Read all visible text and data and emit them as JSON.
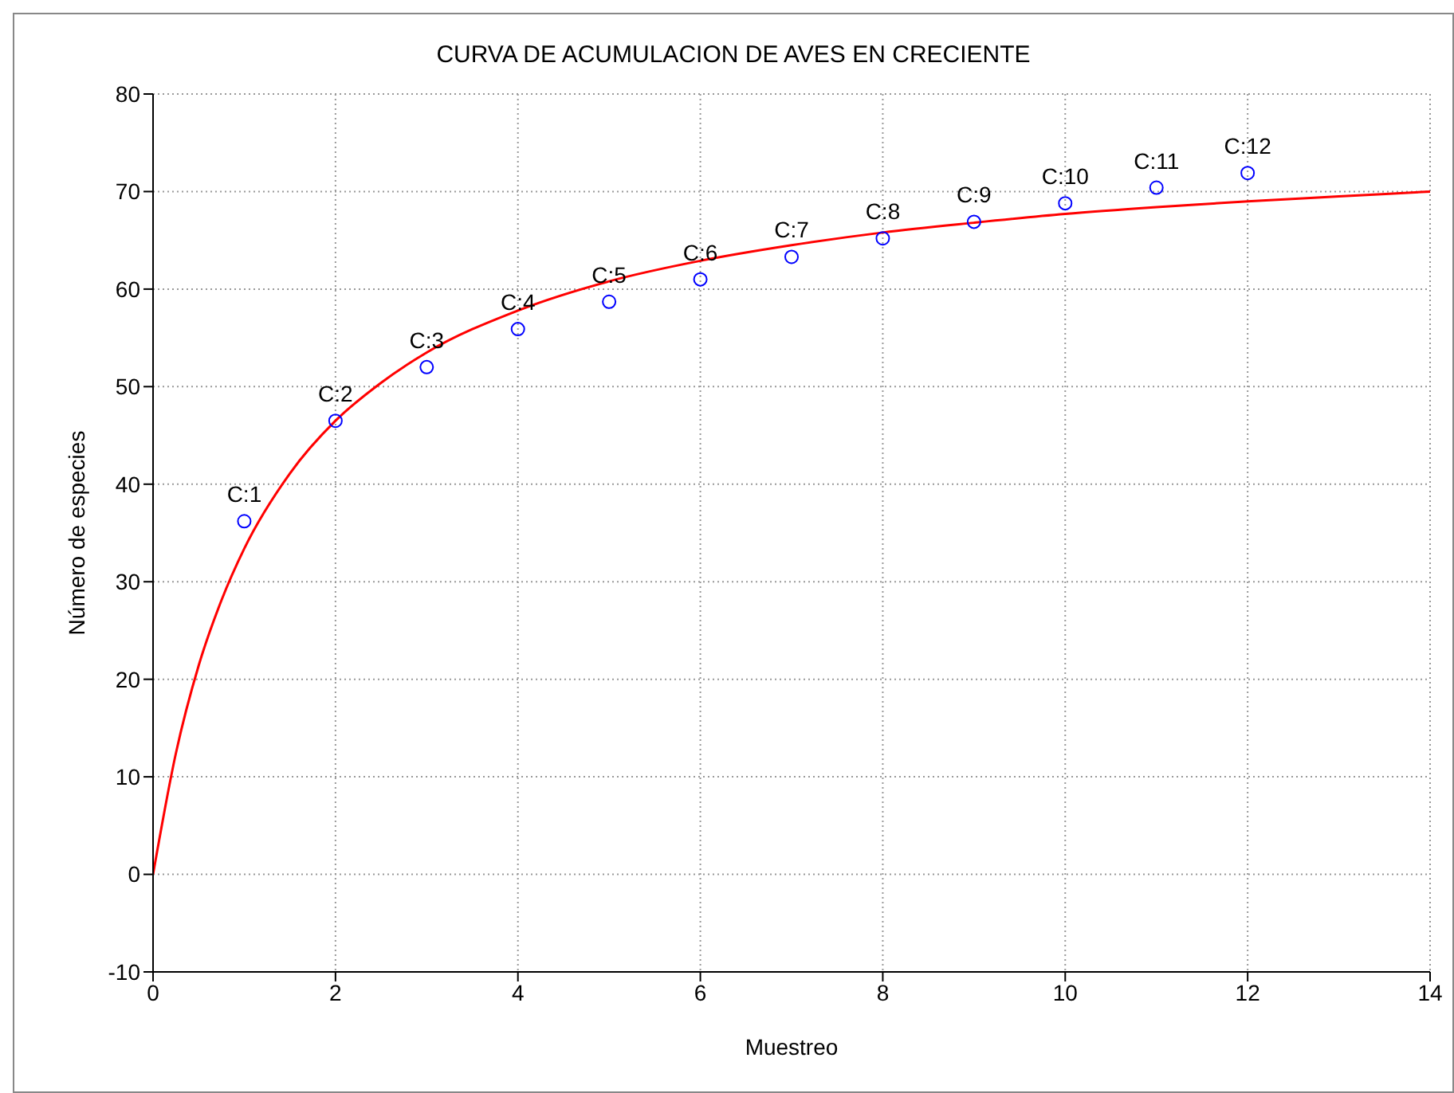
{
  "chart_data": {
    "type": "scatter",
    "title": "CURVA DE ACUMULACION DE AVES EN CRECIENTE",
    "xlabel": "Muestreo",
    "ylabel": "Número de especies",
    "series": [
      {
        "color": "#0000ff",
        "marker": "circle",
        "x": [
          1,
          2,
          3,
          4,
          5,
          6,
          7,
          8,
          9,
          10,
          11,
          12
        ],
        "values": [
          36.2,
          46.5,
          52.0,
          55.9,
          58.7,
          61.0,
          63.3,
          65.2,
          66.9,
          68.8,
          70.4,
          71.9
        ]
      },
      {
        "type": "line",
        "color": "#ff0000",
        "marker": "none",
        "line_style": "solid",
        "x": [
          0,
          0.25,
          0.5,
          0.75,
          1,
          1.5,
          2,
          2.5,
          3,
          4,
          5,
          6,
          7,
          8,
          9,
          10,
          11,
          12,
          13,
          14
        ],
        "values": [
          0,
          12.4,
          21.4,
          28.1,
          33.4,
          41.1,
          46.5,
          50.4,
          53.5,
          57.8,
          60.8,
          62.9,
          64.5,
          65.8,
          66.8,
          67.7,
          68.4,
          69.0,
          69.5,
          70.0
        ]
      }
    ],
    "annotations": [
      {
        "text": "C:1",
        "x": 1,
        "y": 36.2
      },
      {
        "text": "C:2",
        "x": 2,
        "y": 46.5
      },
      {
        "text": "C:3",
        "x": 3,
        "y": 52.0
      },
      {
        "text": "C:4",
        "x": 4,
        "y": 55.9
      },
      {
        "text": "C:5",
        "x": 5,
        "y": 58.7
      },
      {
        "text": "C:6",
        "x": 6,
        "y": 61.0
      },
      {
        "text": "C:7",
        "x": 7,
        "y": 63.3
      },
      {
        "text": "C:8",
        "x": 8,
        "y": 65.2
      },
      {
        "text": "C:9",
        "x": 9,
        "y": 66.9
      },
      {
        "text": "C:10",
        "x": 10,
        "y": 68.8
      },
      {
        "text": "C:11",
        "x": 11,
        "y": 70.4
      },
      {
        "text": "C:12",
        "x": 12,
        "y": 71.9
      }
    ],
    "xlim": [
      0,
      14
    ],
    "xticks": [
      0,
      2,
      4,
      6,
      8,
      10,
      12,
      14
    ],
    "ylim": [
      -10,
      80
    ],
    "yticks": [
      -10,
      0,
      10,
      20,
      30,
      40,
      50,
      60,
      70,
      80
    ],
    "grid": true
  }
}
